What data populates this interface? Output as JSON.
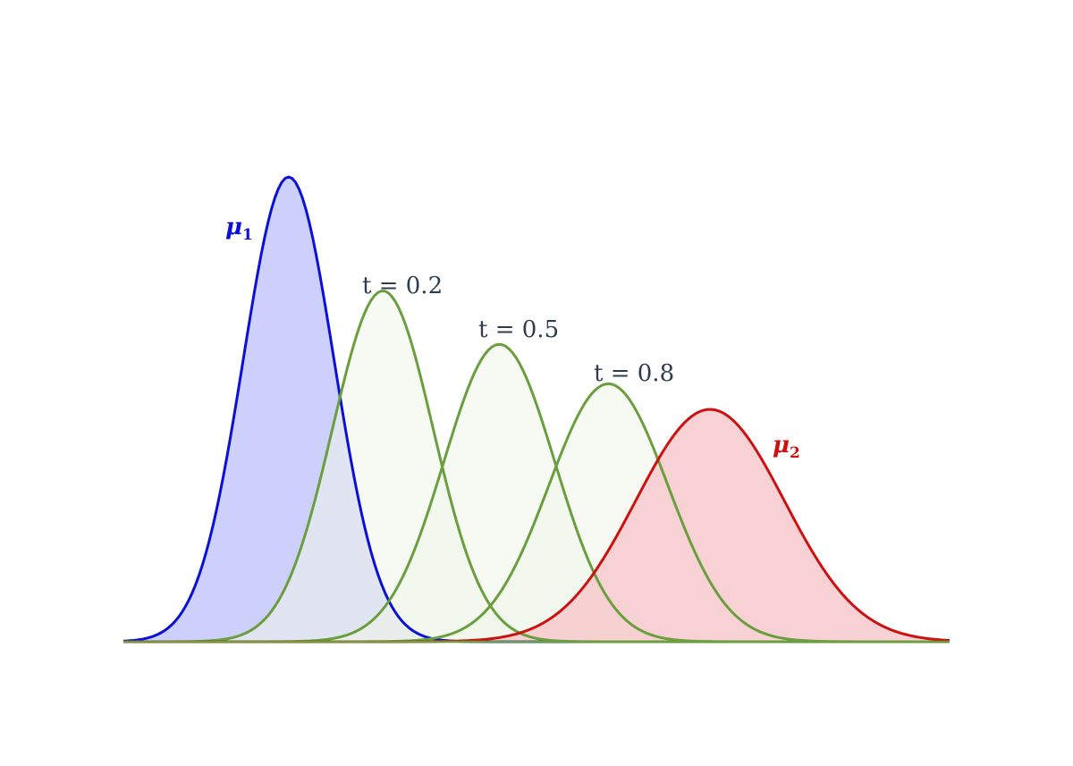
{
  "chart_data": {
    "type": "area",
    "title": "",
    "xlabel": "",
    "ylabel": "",
    "axes_visible": false,
    "grid": false,
    "xlim": [
      0.0,
      10.0
    ],
    "ylim": [
      0.0,
      1.0
    ],
    "series": [
      {
        "name": "μ1",
        "label_symbol": "μ",
        "label_sub": "1",
        "color": "#0b10d6",
        "fill": "#c8cbfa",
        "mean": 2.0,
        "sd": 0.55,
        "peak": 1.0
      },
      {
        "name": "t = 0.2",
        "label_text": "t = 0.2",
        "color": "#6a9e3e",
        "fill": "#f0f5ea",
        "mean": 3.14,
        "sd": 0.61,
        "peak": 0.755
      },
      {
        "name": "t = 0.5",
        "label_text": "t = 0.5",
        "color": "#6a9e3e",
        "fill": "#f0f5ea",
        "mean": 4.55,
        "sd": 0.67,
        "peak": 0.64
      },
      {
        "name": "t = 0.8",
        "label_text": "t = 0.8",
        "color": "#6a9e3e",
        "fill": "#f0f5ea",
        "mean": 5.87,
        "sd": 0.72,
        "peak": 0.555
      },
      {
        "name": "μ2",
        "label_symbol": "μ",
        "label_sub": "2",
        "color": "#cc1111",
        "fill": "#f7c9cc",
        "mean": 7.1,
        "sd": 0.9,
        "peak": 0.5
      }
    ]
  },
  "colors": {
    "mu1": "#0b10d6",
    "interp": "#6a9e3e",
    "mu2": "#cc1111",
    "label_text": "#2e3c52"
  }
}
